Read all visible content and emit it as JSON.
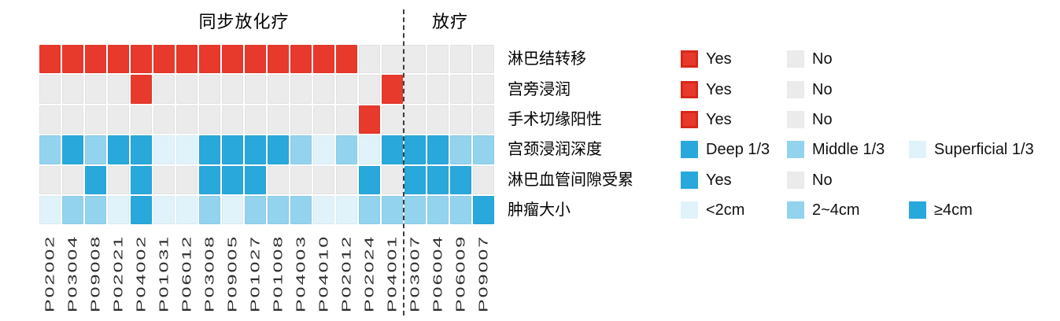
{
  "chart_data": {
    "type": "heatmap",
    "title": "",
    "grid": "off",
    "legend_position": "right-of-rows",
    "column_groups": [
      {
        "label": "同步放化疗",
        "start": 0,
        "count": 16
      },
      {
        "label": "放疗",
        "start": 16,
        "count": 4
      }
    ],
    "separator_after_column": 16,
    "columns": [
      "P02002",
      "P03004",
      "P09008",
      "P02021",
      "P04002",
      "P01031",
      "P06012",
      "P03008",
      "P09005",
      "P01027",
      "P01008",
      "P04003",
      "P04010",
      "P02012",
      "P02024",
      "P04001",
      "P03007",
      "P06004",
      "P06009",
      "P09007"
    ],
    "palette": {
      "yes_red": "#e8392d",
      "no_gray": "#ebebeb",
      "deep_blue": "#29a8db",
      "mid_blue": "#93d3ee",
      "pale_blue": "#e1f3fa",
      "legend_red_border": "#d7281b",
      "separator": "#3f3f3f"
    },
    "rows": [
      {
        "label": "淋巴结转移",
        "color_map": {
          "Yes": "#e8392d",
          "No": "#ebebeb"
        },
        "values": [
          "Yes",
          "Yes",
          "Yes",
          "Yes",
          "Yes",
          "Yes",
          "Yes",
          "Yes",
          "Yes",
          "Yes",
          "Yes",
          "Yes",
          "Yes",
          "Yes",
          "No",
          "No",
          "No",
          "No",
          "No",
          "No"
        ],
        "legend": [
          {
            "label": "Yes",
            "color": "#e8392d",
            "border": "#d7281b"
          },
          {
            "label": "No",
            "color": "#ebebeb"
          }
        ]
      },
      {
        "label": "宫旁浸润",
        "color_map": {
          "Yes": "#e8392d",
          "No": "#ebebeb"
        },
        "values": [
          "No",
          "No",
          "No",
          "No",
          "Yes",
          "No",
          "No",
          "No",
          "No",
          "No",
          "No",
          "No",
          "No",
          "No",
          "No",
          "Yes",
          "No",
          "No",
          "No",
          "No"
        ],
        "legend": [
          {
            "label": "Yes",
            "color": "#e8392d",
            "border": "#d7281b"
          },
          {
            "label": "No",
            "color": "#ebebeb"
          }
        ]
      },
      {
        "label": "手术切缘阳性",
        "color_map": {
          "Yes": "#e8392d",
          "No": "#ebebeb"
        },
        "values": [
          "No",
          "No",
          "No",
          "No",
          "No",
          "No",
          "No",
          "No",
          "No",
          "No",
          "No",
          "No",
          "No",
          "No",
          "Yes",
          "No",
          "No",
          "No",
          "No",
          "No"
        ],
        "legend": [
          {
            "label": "Yes",
            "color": "#e8392d",
            "border": "#d7281b"
          },
          {
            "label": "No",
            "color": "#ebebeb"
          }
        ]
      },
      {
        "label": "宫颈浸润深度",
        "color_map": {
          "Deep 1/3": "#29a8db",
          "Middle 1/3": "#93d3ee",
          "Superficial 1/3": "#e1f3fa"
        },
        "values": [
          "Middle 1/3",
          "Deep 1/3",
          "Middle 1/3",
          "Deep 1/3",
          "Deep 1/3",
          "Superficial 1/3",
          "Superficial 1/3",
          "Deep 1/3",
          "Deep 1/3",
          "Deep 1/3",
          "Deep 1/3",
          "Middle 1/3",
          "Superficial 1/3",
          "Middle 1/3",
          "Superficial 1/3",
          "Deep 1/3",
          "Deep 1/3",
          "Deep 1/3",
          "Middle 1/3",
          "Middle 1/3"
        ],
        "legend": [
          {
            "label": "Deep 1/3",
            "color": "#29a8db"
          },
          {
            "label": "Middle 1/3",
            "color": "#93d3ee"
          },
          {
            "label": "Superficial 1/3",
            "color": "#e1f3fa"
          }
        ]
      },
      {
        "label": "淋巴血管间隙受累",
        "color_map": {
          "Yes": "#29a8db",
          "No": "#ebebeb"
        },
        "values": [
          "No",
          "No",
          "Yes",
          "No",
          "Yes",
          "No",
          "No",
          "Yes",
          "Yes",
          "Yes",
          "No",
          "No",
          "No",
          "No",
          "Yes",
          "No",
          "Yes",
          "Yes",
          "Yes",
          "No"
        ],
        "legend": [
          {
            "label": "Yes",
            "color": "#29a8db"
          },
          {
            "label": "No",
            "color": "#ebebeb"
          }
        ]
      },
      {
        "label": "肿瘤大小",
        "color_map": {
          "<2cm": "#e1f3fa",
          "2~4cm": "#93d3ee",
          "≥4cm": "#29a8db"
        },
        "values": [
          "<2cm",
          "2~4cm",
          "2~4cm",
          "<2cm",
          "≥4cm",
          "<2cm",
          "<2cm",
          "2~4cm",
          "<2cm",
          "2~4cm",
          "2~4cm",
          "2~4cm",
          "<2cm",
          "<2cm",
          "2~4cm",
          "2~4cm",
          "2~4cm",
          "2~4cm",
          "2~4cm",
          "≥4cm"
        ],
        "legend": [
          {
            "label": "<2cm",
            "color": "#e1f3fa"
          },
          {
            "label": "2~4cm",
            "color": "#93d3ee"
          },
          {
            "label": "≥4cm",
            "color": "#29a8db"
          }
        ]
      }
    ]
  }
}
